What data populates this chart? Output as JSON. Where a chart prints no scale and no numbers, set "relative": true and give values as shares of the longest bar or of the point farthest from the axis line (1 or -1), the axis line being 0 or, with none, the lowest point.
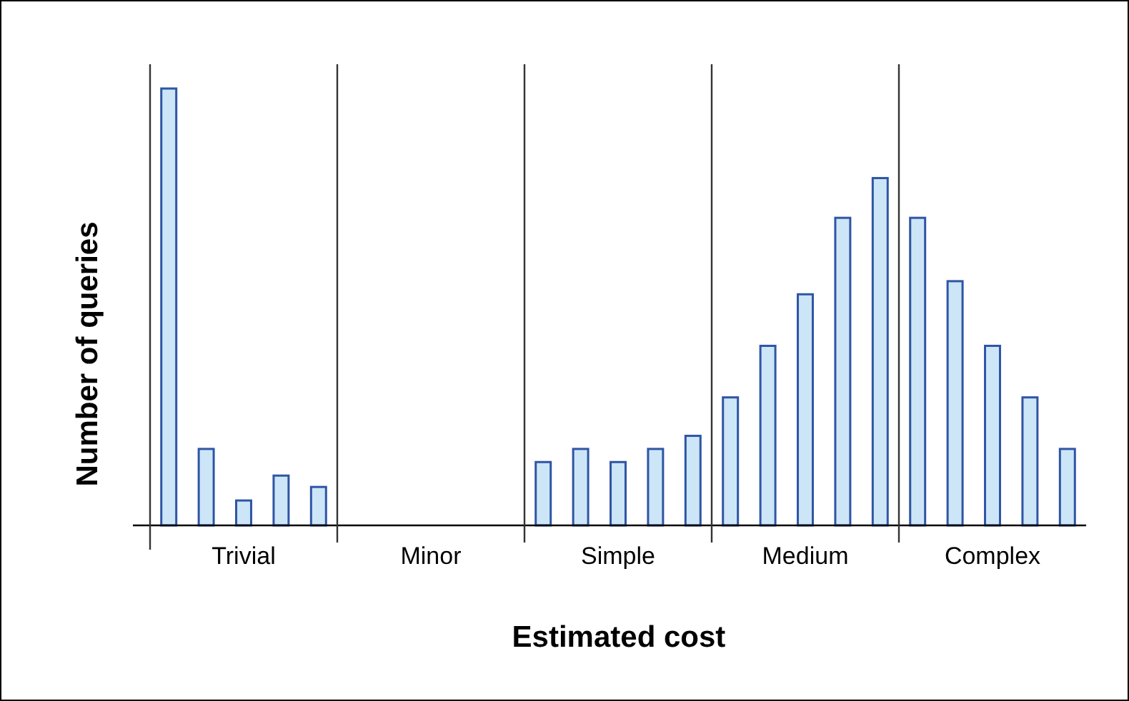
{
  "chart_data": {
    "type": "bar",
    "relative": true,
    "xlabel": "Estimated cost",
    "ylabel": "Number of queries",
    "categories": [
      "Trivial",
      "Minor",
      "Simple",
      "Medium",
      "Complex"
    ],
    "series": [
      {
        "color": "#cce6f7",
        "values": [
          1,
          null,
          0.145,
          0.293,
          0.704
        ]
      },
      {
        "color": "#cce6f7",
        "values": [
          0.175,
          null,
          0.175,
          0.411,
          0.559
        ]
      },
      {
        "color": "#cce6f7",
        "values": [
          0.057,
          null,
          0.145,
          0.529,
          0.411
        ]
      },
      {
        "color": "#cce6f7",
        "values": [
          0.114,
          null,
          0.175,
          0.704,
          0.293
        ]
      },
      {
        "color": "#cce6f7",
        "values": [
          0.088,
          null,
          0.205,
          0.795,
          0.175
        ]
      }
    ]
  }
}
